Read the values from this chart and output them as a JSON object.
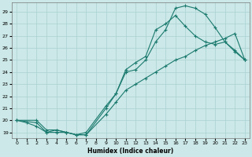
{
  "title": "",
  "xlabel": "Humidex (Indice chaleur)",
  "bg_color": "#cce8e8",
  "grid_color": "#aad0d0",
  "line_color": "#1a7a6e",
  "xlim": [
    -0.5,
    23.5
  ],
  "ylim": [
    18.5,
    29.8
  ],
  "xticks": [
    0,
    1,
    2,
    3,
    4,
    5,
    6,
    7,
    8,
    9,
    10,
    11,
    12,
    13,
    14,
    15,
    16,
    17,
    18,
    19,
    20,
    21,
    22,
    23
  ],
  "yticks": [
    19,
    20,
    21,
    22,
    23,
    24,
    25,
    26,
    27,
    28,
    29
  ],
  "line1_x": [
    0,
    1,
    2,
    3,
    4,
    5,
    6,
    7,
    9,
    10,
    11,
    12,
    13,
    14,
    15,
    16,
    17,
    18,
    19,
    20,
    21,
    22,
    23
  ],
  "line1_y": [
    20.0,
    19.8,
    19.5,
    19.0,
    19.2,
    19.0,
    18.8,
    18.8,
    21.0,
    22.2,
    24.0,
    24.2,
    25.0,
    26.5,
    27.5,
    29.3,
    29.5,
    29.3,
    28.8,
    27.7,
    26.5,
    25.8,
    25.0
  ],
  "line2_x": [
    0,
    2,
    3,
    4,
    5,
    6,
    7,
    9,
    10,
    11,
    12,
    13,
    14,
    15,
    16,
    17,
    18,
    19,
    20,
    21,
    22,
    23
  ],
  "line2_y": [
    20.0,
    20.0,
    19.2,
    19.2,
    19.0,
    18.8,
    19.0,
    21.2,
    22.2,
    24.2,
    24.8,
    25.3,
    27.5,
    28.0,
    28.7,
    27.8,
    27.0,
    26.5,
    26.3,
    26.5,
    25.7,
    25.0
  ],
  "line3_x": [
    0,
    2,
    3,
    4,
    5,
    6,
    7,
    9,
    10,
    11,
    12,
    13,
    14,
    15,
    16,
    17,
    18,
    19,
    20,
    21,
    22,
    23
  ],
  "line3_y": [
    20.0,
    19.8,
    19.0,
    19.0,
    19.0,
    18.8,
    18.8,
    20.5,
    21.5,
    22.5,
    23.0,
    23.5,
    24.0,
    24.5,
    25.0,
    25.3,
    25.8,
    26.2,
    26.5,
    26.8,
    27.2,
    25.0
  ]
}
